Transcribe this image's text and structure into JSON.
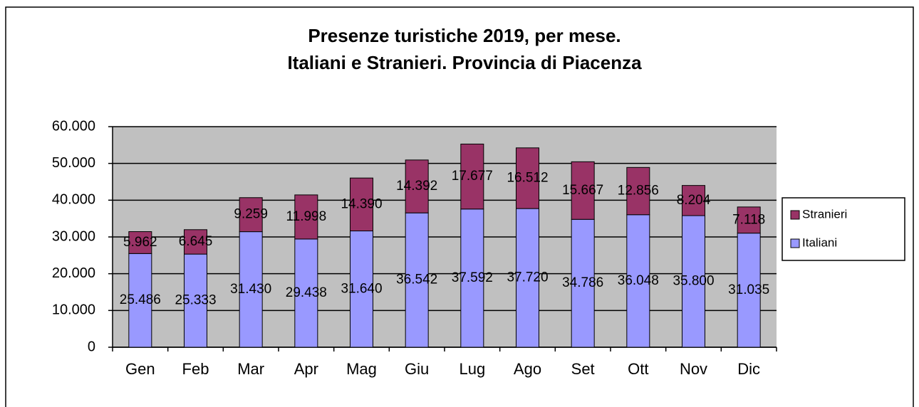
{
  "chart_data": {
    "type": "stacked_bar",
    "title": [
      "Presenze turistiche 2019, per mese.",
      "Italiani e Stranieri. Provincia di Piacenza"
    ],
    "categories": [
      "Gen",
      "Feb",
      "Mar",
      "Apr",
      "Mag",
      "Giu",
      "Lug",
      "Ago",
      "Set",
      "Ott",
      "Nov",
      "Dic"
    ],
    "series": [
      {
        "name": "Italiani",
        "color": "#9999ff",
        "values": [
          25486,
          25333,
          31430,
          29438,
          31640,
          36542,
          37592,
          37720,
          34786,
          36048,
          35800,
          31035
        ],
        "value_labels": [
          "25.486",
          "25.333",
          "31.430",
          "29.438",
          "31.640",
          "36.542",
          "37.592",
          "37.720",
          "34.786",
          "36.048",
          "35.800",
          "31.035"
        ]
      },
      {
        "name": "Stranieri",
        "color": "#993366",
        "values": [
          5962,
          6645,
          9259,
          11998,
          14390,
          14392,
          17677,
          16512,
          15667,
          12856,
          8204,
          7118
        ],
        "value_labels": [
          "5.962",
          "6.645",
          "9.259",
          "11.998",
          "14.390",
          "14.392",
          "17.677",
          "16.512",
          "15.667",
          "12.856",
          "8.204",
          "7.118"
        ]
      }
    ],
    "ylim": [
      0,
      60000
    ],
    "yticks": [
      0,
      {
        "value": 10000,
        "label": "10.000"
      },
      {
        "value": 20000,
        "label": "20.000"
      },
      {
        "value": 30000,
        "label": "30.000"
      },
      {
        "value": 40000,
        "label": "40.000"
      },
      {
        "value": 50000,
        "label": "50.000"
      },
      {
        "value": 60000,
        "label": "60.000"
      }
    ],
    "grid": true,
    "plot_background": "#c0c0c0",
    "legend": "right"
  }
}
